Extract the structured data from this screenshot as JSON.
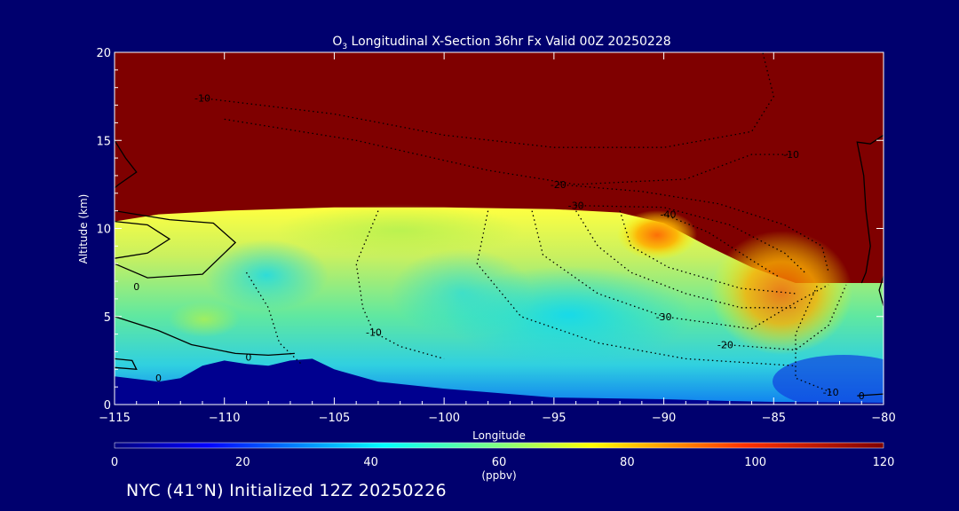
{
  "chart_data": {
    "type": "heatmap",
    "title_prefix": "O",
    "title_sub": "3",
    "title_rest": " Longitudinal X-Section 36hr  Fx Valid 00Z 20250228",
    "xlabel": "Longitude",
    "ylabel": "Altitude (km)",
    "xlim": [
      -115,
      -80
    ],
    "ylim": [
      0,
      20
    ],
    "x_ticks": [
      -115,
      -110,
      -105,
      -100,
      -95,
      -90,
      -85,
      -80
    ],
    "x_tick_labels": [
      "−115",
      "−110",
      "−105",
      "−100",
      "−95",
      "−90",
      "−85",
      "−80"
    ],
    "y_ticks": [
      0,
      5,
      10,
      15,
      20
    ],
    "y_tick_labels": [
      "0",
      "5",
      "10",
      "15",
      "20"
    ],
    "colorbar": {
      "range": [
        0,
        120
      ],
      "ticks": [
        0,
        20,
        40,
        60,
        80,
        100,
        120
      ],
      "tick_labels": [
        "0",
        "20",
        "40",
        "60",
        "80",
        "100",
        "120"
      ],
      "unit": "(ppbv)"
    },
    "tropopause_height_km": [
      {
        "x": -115,
        "y": 10.4
      },
      {
        "x": -113,
        "y": 10.8
      },
      {
        "x": -110,
        "y": 11.0
      },
      {
        "x": -105,
        "y": 11.2
      },
      {
        "x": -100,
        "y": 11.2
      },
      {
        "x": -95,
        "y": 11.1
      },
      {
        "x": -92,
        "y": 10.9
      },
      {
        "x": -90,
        "y": 10.3
      },
      {
        "x": -88,
        "y": 9.0
      },
      {
        "x": -86,
        "y": 7.8
      },
      {
        "x": -84,
        "y": 6.9
      },
      {
        "x": -82,
        "y": 6.9
      },
      {
        "x": -80,
        "y": 6.9
      }
    ],
    "terrain_height_km": [
      {
        "x": -115,
        "y": 1.6
      },
      {
        "x": -113,
        "y": 1.3
      },
      {
        "x": -112,
        "y": 1.5
      },
      {
        "x": -111,
        "y": 2.2
      },
      {
        "x": -110,
        "y": 2.5
      },
      {
        "x": -109,
        "y": 2.3
      },
      {
        "x": -108,
        "y": 2.2
      },
      {
        "x": -107,
        "y": 2.5
      },
      {
        "x": -106,
        "y": 2.6
      },
      {
        "x": -105,
        "y": 2.0
      },
      {
        "x": -103,
        "y": 1.3
      },
      {
        "x": -100,
        "y": 0.9
      },
      {
        "x": -97,
        "y": 0.6
      },
      {
        "x": -95,
        "y": 0.4
      },
      {
        "x": -90,
        "y": 0.3
      },
      {
        "x": -87,
        "y": 0.2
      },
      {
        "x": -85,
        "y": 0.15
      },
      {
        "x": -80,
        "y": 0.1
      }
    ],
    "contour_labels": [
      {
        "text": "-10",
        "x": -111.0,
        "y": 17.4
      },
      {
        "text": "-10",
        "x": -84.2,
        "y": 14.2
      },
      {
        "text": "-20",
        "x": -94.8,
        "y": 12.5
      },
      {
        "text": "-30",
        "x": -94.0,
        "y": 11.3
      },
      {
        "text": "-40",
        "x": -89.8,
        "y": 10.8
      },
      {
        "text": "-10",
        "x": -103.2,
        "y": 4.1
      },
      {
        "text": "-30",
        "x": -90.0,
        "y": 5.0
      },
      {
        "text": "-20",
        "x": -87.2,
        "y": 3.4
      },
      {
        "text": "-10",
        "x": -82.4,
        "y": 0.7
      },
      {
        "text": "0",
        "x": -81.0,
        "y": 0.5
      },
      {
        "text": "0",
        "x": -114.0,
        "y": 6.7
      },
      {
        "text": "0",
        "x": -108.9,
        "y": 2.7
      },
      {
        "text": "0",
        "x": -113.0,
        "y": 1.5
      }
    ]
  },
  "footer": {
    "text": "NYC (41°N) Initialized 12Z 20250226"
  },
  "colors": {
    "background": "#00006e",
    "stratosphere": "#7f0000",
    "terrain": "#00008f"
  }
}
